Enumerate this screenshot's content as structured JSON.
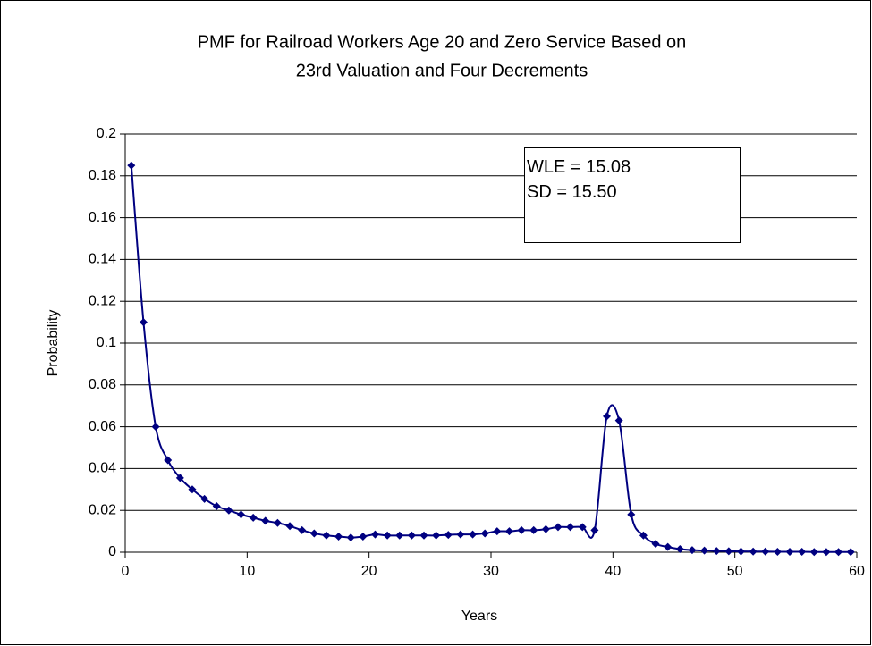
{
  "chart_data": {
    "type": "line",
    "title": [
      "PMF for Railroad Workers Age 20 and Zero Service Based on",
      "23rd Valuation and Four Decrements"
    ],
    "x_label": "Years",
    "y_label": "Probability",
    "annotation": [
      "WLE = 15.08",
      "SD = 15.50"
    ],
    "x": [
      0.5,
      1.5,
      2.5,
      3.5,
      4.5,
      5.5,
      6.5,
      7.5,
      8.5,
      9.5,
      10.5,
      11.5,
      12.5,
      13.5,
      14.5,
      15.5,
      16.5,
      17.5,
      18.5,
      19.5,
      20.5,
      21.5,
      22.5,
      23.5,
      24.5,
      25.5,
      26.5,
      27.5,
      28.5,
      29.5,
      30.5,
      31.5,
      32.5,
      33.5,
      34.5,
      35.5,
      36.5,
      37.5,
      38.5,
      39.5,
      40.5,
      41.5,
      42.5,
      43.5,
      44.5,
      45.5,
      46.5,
      47.5,
      48.5,
      49.5,
      50.5,
      51.5,
      52.5,
      53.5,
      54.5,
      55.5,
      56.5,
      57.5,
      58.5,
      59.5
    ],
    "series": [
      {
        "name": "PMF",
        "color": "#000080",
        "values": [
          0.185,
          0.11,
          0.06,
          0.044,
          0.0355,
          0.03,
          0.0255,
          0.022,
          0.02,
          0.018,
          0.0165,
          0.015,
          0.014,
          0.0125,
          0.0105,
          0.009,
          0.008,
          0.0075,
          0.007,
          0.0075,
          0.0085,
          0.008,
          0.008,
          0.008,
          0.008,
          0.008,
          0.0083,
          0.0085,
          0.0085,
          0.009,
          0.01,
          0.01,
          0.0105,
          0.0105,
          0.011,
          0.012,
          0.012,
          0.012,
          0.0105,
          0.065,
          0.063,
          0.018,
          0.008,
          0.004,
          0.0025,
          0.0015,
          0.001,
          0.0008,
          0.0006,
          0.0005,
          0.0004,
          0.0003,
          0.0003,
          0.0002,
          0.0002,
          0.0002,
          0.0001,
          0.0001,
          0.0001,
          0.0001
        ]
      }
    ],
    "xlim": [
      0,
      60
    ],
    "xticks": [
      0,
      10,
      20,
      30,
      40,
      50,
      60
    ],
    "ylim": [
      0,
      0.2
    ],
    "yticks": [
      0,
      0.02,
      0.04,
      0.06,
      0.08,
      0.1,
      0.12,
      0.14,
      0.16,
      0.18,
      0.2
    ],
    "grid": true
  }
}
